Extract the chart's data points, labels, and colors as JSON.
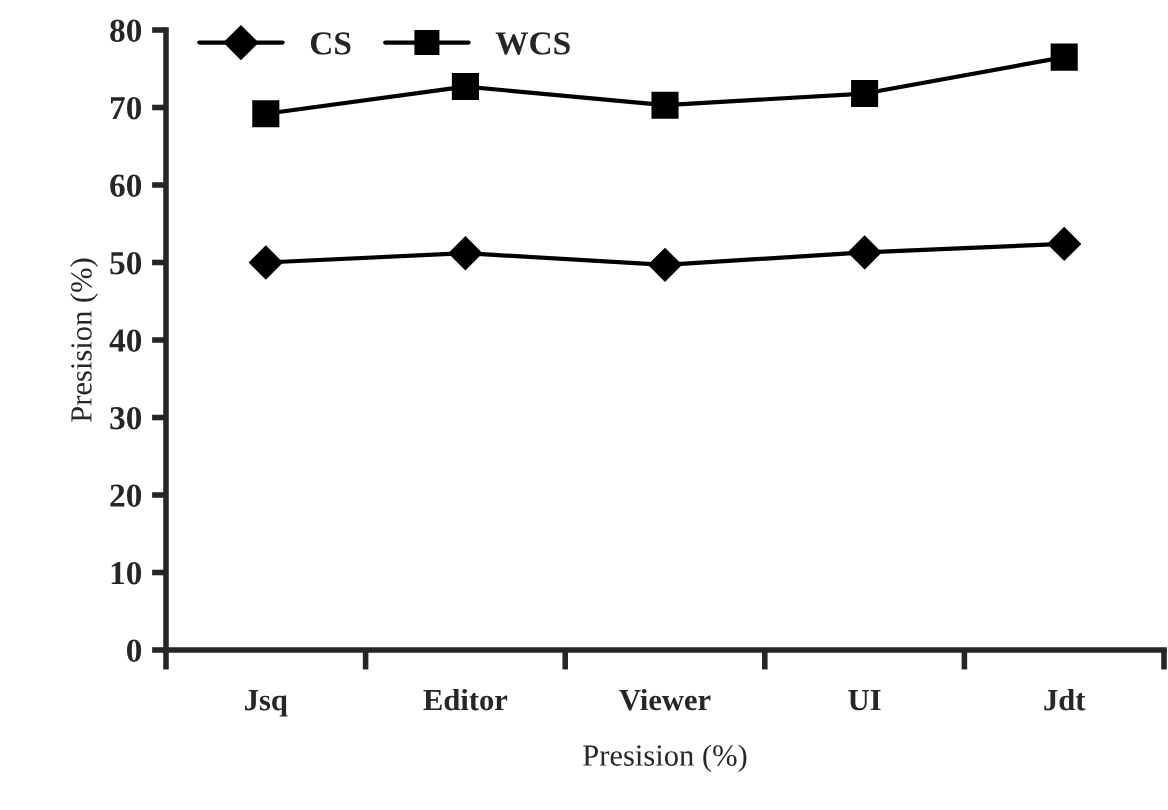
{
  "chart_data": {
    "type": "line",
    "xlabel": "Presision (%)",
    "ylabel": "Presision (%)",
    "categories": [
      "Jsq",
      "Editor",
      "Viewer",
      "UI",
      "Jdt"
    ],
    "series": [
      {
        "name": "CS",
        "color": "#000000",
        "marker": "diamond",
        "values": [
          50.0,
          51.2,
          49.7,
          51.3,
          52.4
        ]
      },
      {
        "name": "WCS",
        "color": "#000000",
        "marker": "square",
        "values": [
          69.2,
          72.7,
          70.3,
          71.8,
          76.5
        ]
      }
    ],
    "ylim": [
      0,
      80
    ],
    "yticks": [
      0,
      10,
      20,
      30,
      40,
      50,
      60,
      70,
      80
    ],
    "grid": false,
    "legend": "top left",
    "line_style": "solid"
  }
}
